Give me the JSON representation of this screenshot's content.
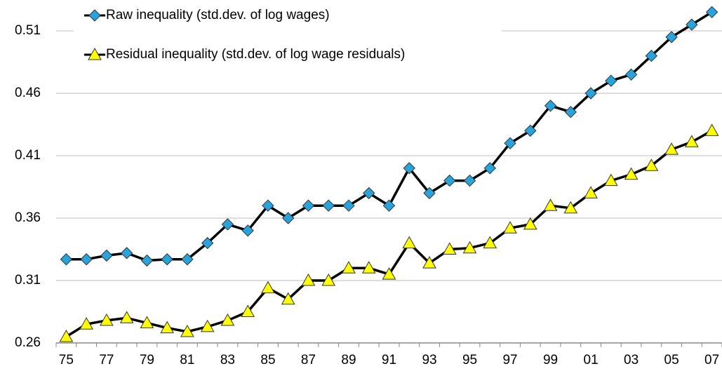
{
  "chart_data": {
    "type": "line",
    "categories": [
      "75",
      null,
      "77",
      null,
      "79",
      null,
      "81",
      null,
      "83",
      null,
      "85",
      null,
      "87",
      null,
      "89",
      null,
      "91",
      null,
      "93",
      null,
      "95",
      null,
      "97",
      null,
      "99",
      null,
      "01",
      null,
      "03",
      null,
      "05",
      null,
      "07"
    ],
    "series": [
      {
        "name": "Raw inequality (std.dev. of log wages)",
        "color": "#29a3dc",
        "marker": "diamond",
        "values": [
          0.327,
          0.327,
          0.33,
          0.332,
          0.326,
          0.327,
          0.327,
          0.34,
          0.355,
          0.35,
          0.37,
          0.36,
          0.37,
          0.37,
          0.37,
          0.38,
          0.37,
          0.4,
          0.38,
          0.39,
          0.39,
          0.4,
          0.42,
          0.43,
          0.45,
          0.445,
          0.46,
          0.47,
          0.475,
          0.49,
          0.505,
          0.515,
          0.525
        ]
      },
      {
        "name": "Residual inequality (std.dev. of log wage residuals)",
        "color": "#ffff00",
        "marker": "triangle",
        "values": [
          0.265,
          0.275,
          0.278,
          0.28,
          0.276,
          0.272,
          0.269,
          0.273,
          0.278,
          0.285,
          0.304,
          0.295,
          0.31,
          0.31,
          0.32,
          0.32,
          0.315,
          0.34,
          0.324,
          0.335,
          0.336,
          0.34,
          0.352,
          0.355,
          0.37,
          0.368,
          0.38,
          0.39,
          0.395,
          0.402,
          0.415,
          0.421,
          0.43
        ]
      }
    ],
    "line_color": "#000000",
    "ylim": [
      0.26,
      0.535
    ],
    "yticks": [
      0.26,
      0.31,
      0.36,
      0.41,
      0.46,
      0.51
    ],
    "grid": true,
    "legend": "top-left"
  }
}
